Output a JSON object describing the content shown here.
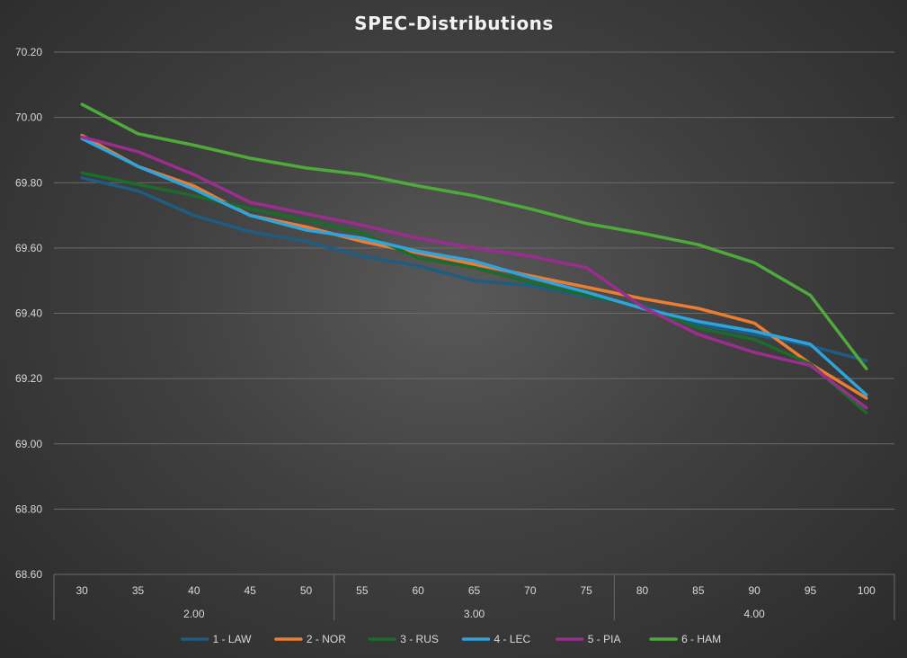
{
  "chart_data": {
    "type": "line",
    "title": "SPEC-Distributions",
    "categories": [
      "30",
      "35",
      "40",
      "45",
      "50",
      "55",
      "60",
      "65",
      "70",
      "75",
      "80",
      "85",
      "90",
      "95",
      "100"
    ],
    "group_labels": [
      {
        "label": "2.00",
        "from": 0,
        "to": 4
      },
      {
        "label": "3.00",
        "from": 5,
        "to": 9
      },
      {
        "label": "4.00",
        "from": 10,
        "to": 14
      }
    ],
    "y_tick_labels": [
      "68.60",
      "68.80",
      "69.00",
      "69.20",
      "69.40",
      "69.60",
      "69.80",
      "70.00",
      "70.20"
    ],
    "ylim": [
      68.6,
      70.2
    ],
    "gridlines": true,
    "legend_position": "bottom",
    "series": [
      {
        "name": "1 - LAW",
        "color": "#1f5c82",
        "values": [
          69.815,
          69.775,
          69.7,
          69.65,
          69.62,
          69.575,
          69.545,
          69.5,
          69.485,
          69.45,
          69.425,
          69.365,
          69.335,
          69.3,
          69.255
        ]
      },
      {
        "name": "2 - NOR",
        "color": "#ed7d31",
        "values": [
          69.945,
          69.85,
          69.79,
          69.7,
          69.665,
          69.62,
          69.585,
          69.55,
          69.515,
          69.48,
          69.445,
          69.415,
          69.37,
          69.245,
          69.14
        ]
      },
      {
        "name": "3 - RUS",
        "color": "#1b6b2a",
        "values": [
          69.83,
          69.795,
          69.76,
          69.72,
          69.685,
          69.645,
          69.57,
          69.54,
          69.495,
          69.455,
          69.42,
          69.355,
          69.32,
          69.245,
          69.095
        ]
      },
      {
        "name": "4 - LEC",
        "color": "#2ea3dc",
        "values": [
          69.935,
          69.85,
          69.78,
          69.7,
          69.655,
          69.63,
          69.59,
          69.56,
          69.51,
          69.465,
          69.415,
          69.375,
          69.345,
          69.305,
          69.15
        ]
      },
      {
        "name": "5 - PIA",
        "color": "#9b2d8f",
        "values": [
          69.94,
          69.895,
          69.825,
          69.74,
          69.705,
          69.67,
          69.63,
          69.6,
          69.575,
          69.54,
          69.42,
          69.335,
          69.28,
          69.24,
          69.11
        ]
      },
      {
        "name": "6 - HAM",
        "color": "#4eaa3a",
        "values": [
          70.04,
          69.95,
          69.915,
          69.875,
          69.845,
          69.825,
          69.79,
          69.76,
          69.72,
          69.675,
          69.645,
          69.61,
          69.555,
          69.455,
          69.23
        ]
      }
    ]
  }
}
